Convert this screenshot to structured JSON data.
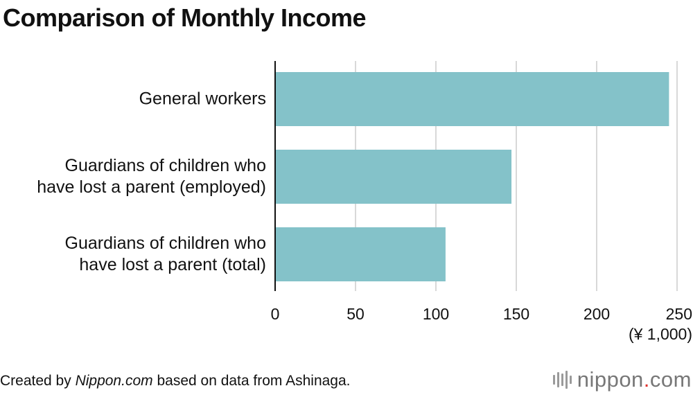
{
  "title": "Comparison of Monthly Income",
  "chart_data": {
    "type": "bar",
    "orientation": "horizontal",
    "categories": [
      "General workers",
      "Guardians of children who have lost a parent (employed)",
      "Guardians of children who have lost a parent (total)"
    ],
    "category_lines": [
      [
        "General workers"
      ],
      [
        "Guardians of children who",
        "have lost a parent (employed)"
      ],
      [
        "Guardians of children who",
        "have lost a parent (total)"
      ]
    ],
    "values": [
      245,
      147,
      106
    ],
    "xlim": [
      0,
      250
    ],
    "xticks": [
      0,
      50,
      100,
      150,
      200,
      250
    ],
    "xtick_labels": [
      "0",
      "50",
      "100",
      "150",
      "200",
      "250"
    ],
    "unit_label": "(¥ 1,000)",
    "grid": true,
    "bar_color": "#84c2c9",
    "grid_color": "#cccccc"
  },
  "footer": {
    "prefix": "Created by ",
    "source_site": "Nippon.com",
    "suffix": " based on data from Ashinaga."
  },
  "logo": {
    "name": "nippon",
    "dot": ".",
    "tld": "com",
    "accent_color": "#e0312c"
  }
}
